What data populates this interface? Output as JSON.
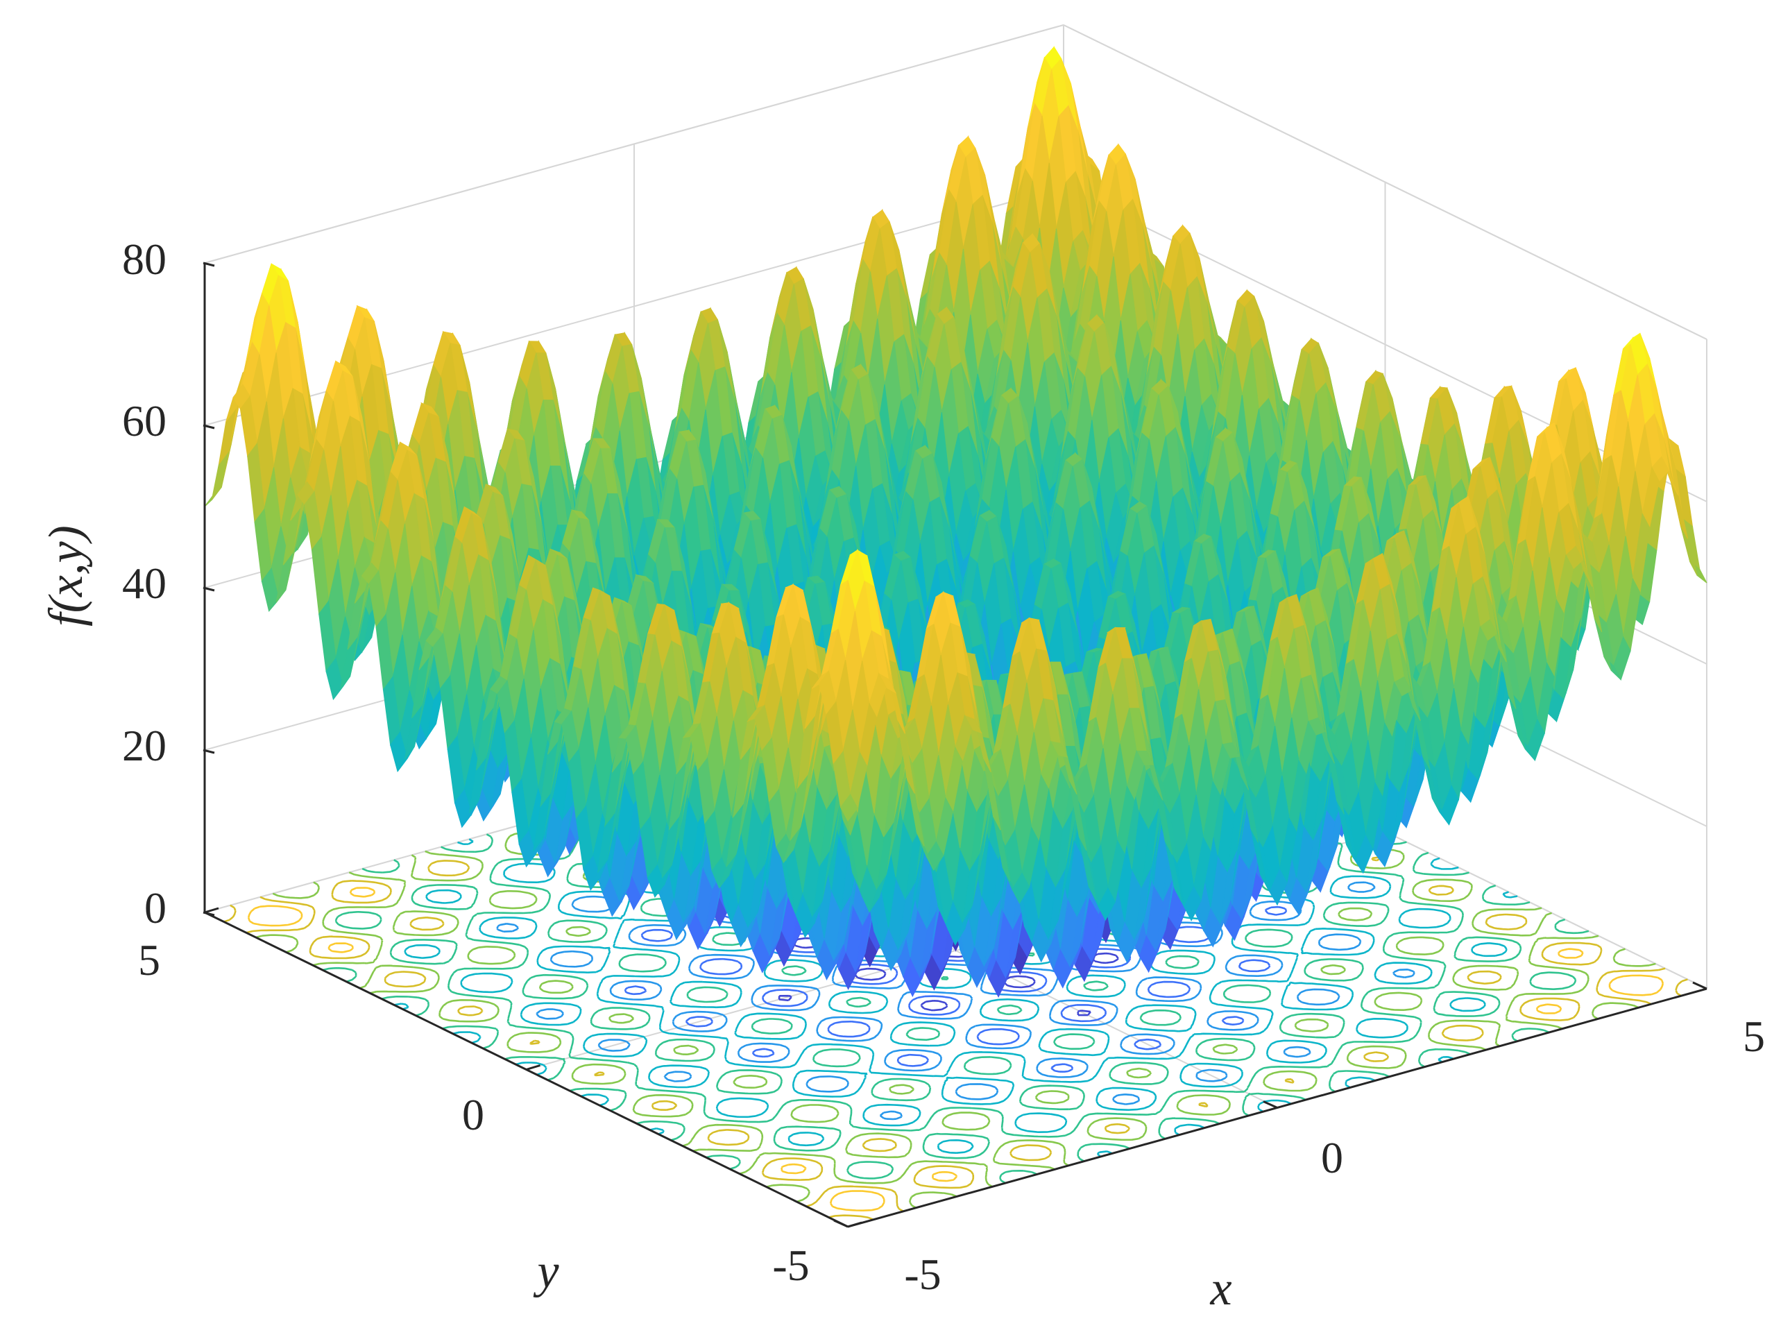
{
  "chart_data": {
    "type": "surface3d",
    "function": "f(x,y) = 20 + x^2 + y^2 - 10*(cos(2*pi*x) + cos(2*pi*y))",
    "xlabel": "x",
    "ylabel": "y",
    "zlabel": "f(x,y)",
    "xlim": [
      -5,
      5
    ],
    "ylim": [
      -5,
      5
    ],
    "zlim": [
      0,
      80
    ],
    "x_ticks": [
      "-5",
      "0",
      "5"
    ],
    "y_ticks": [
      "-5",
      "0",
      "5"
    ],
    "z_ticks": [
      "0",
      "20",
      "40",
      "60",
      "80"
    ],
    "grid": true,
    "colormap": "parula",
    "colormap_stops": [
      "#3e26a8",
      "#4367fd",
      "#2797eb",
      "#0cb5c9",
      "#30c38f",
      "#86c84c",
      "#d7be28",
      "#fcca2f",
      "#f9fb15"
    ],
    "contour_floor": true,
    "contour_levels": [
      5,
      12,
      20,
      30,
      40,
      50,
      60,
      70
    ],
    "grid_resolution": 141
  }
}
